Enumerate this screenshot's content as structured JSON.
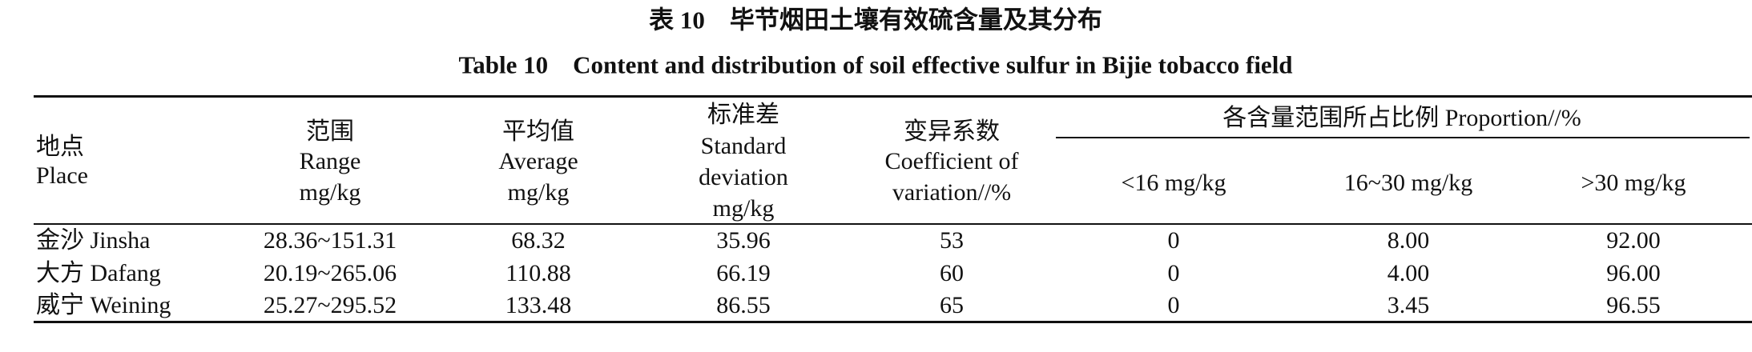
{
  "title_cn": "表 10　毕节烟田土壤有效硫含量及其分布",
  "title_en": "Table 10　Content and distribution of soil effective sulfur in Bijie tobacco field",
  "table": {
    "headers": [
      [
        "地点",
        "Place"
      ],
      [
        "范围",
        "Range",
        "mg/kg"
      ],
      [
        "平均值",
        "Average",
        "mg/kg"
      ],
      [
        "标准差",
        "Standard",
        "deviation",
        "mg/kg"
      ],
      [
        "变异系数",
        "Coefficient of",
        "variation//%"
      ]
    ],
    "group_header": "各含量范围所占比例 Proportion//%",
    "sub_headers": [
      "<16 mg/kg",
      "16~30 mg/kg",
      ">30 mg/kg"
    ],
    "rows": [
      [
        "金沙 Jinsha",
        "28.36~151.31",
        "68.32",
        "35.96",
        "53",
        "0",
        "8.00",
        "92.00"
      ],
      [
        "大方 Dafang",
        "20.19~265.06",
        "110.88",
        "66.19",
        "60",
        "0",
        "4.00",
        "96.00"
      ],
      [
        "威宁 Weining",
        "25.27~295.52",
        "133.48",
        "86.55",
        "65",
        "0",
        "3.45",
        "96.55"
      ]
    ]
  }
}
